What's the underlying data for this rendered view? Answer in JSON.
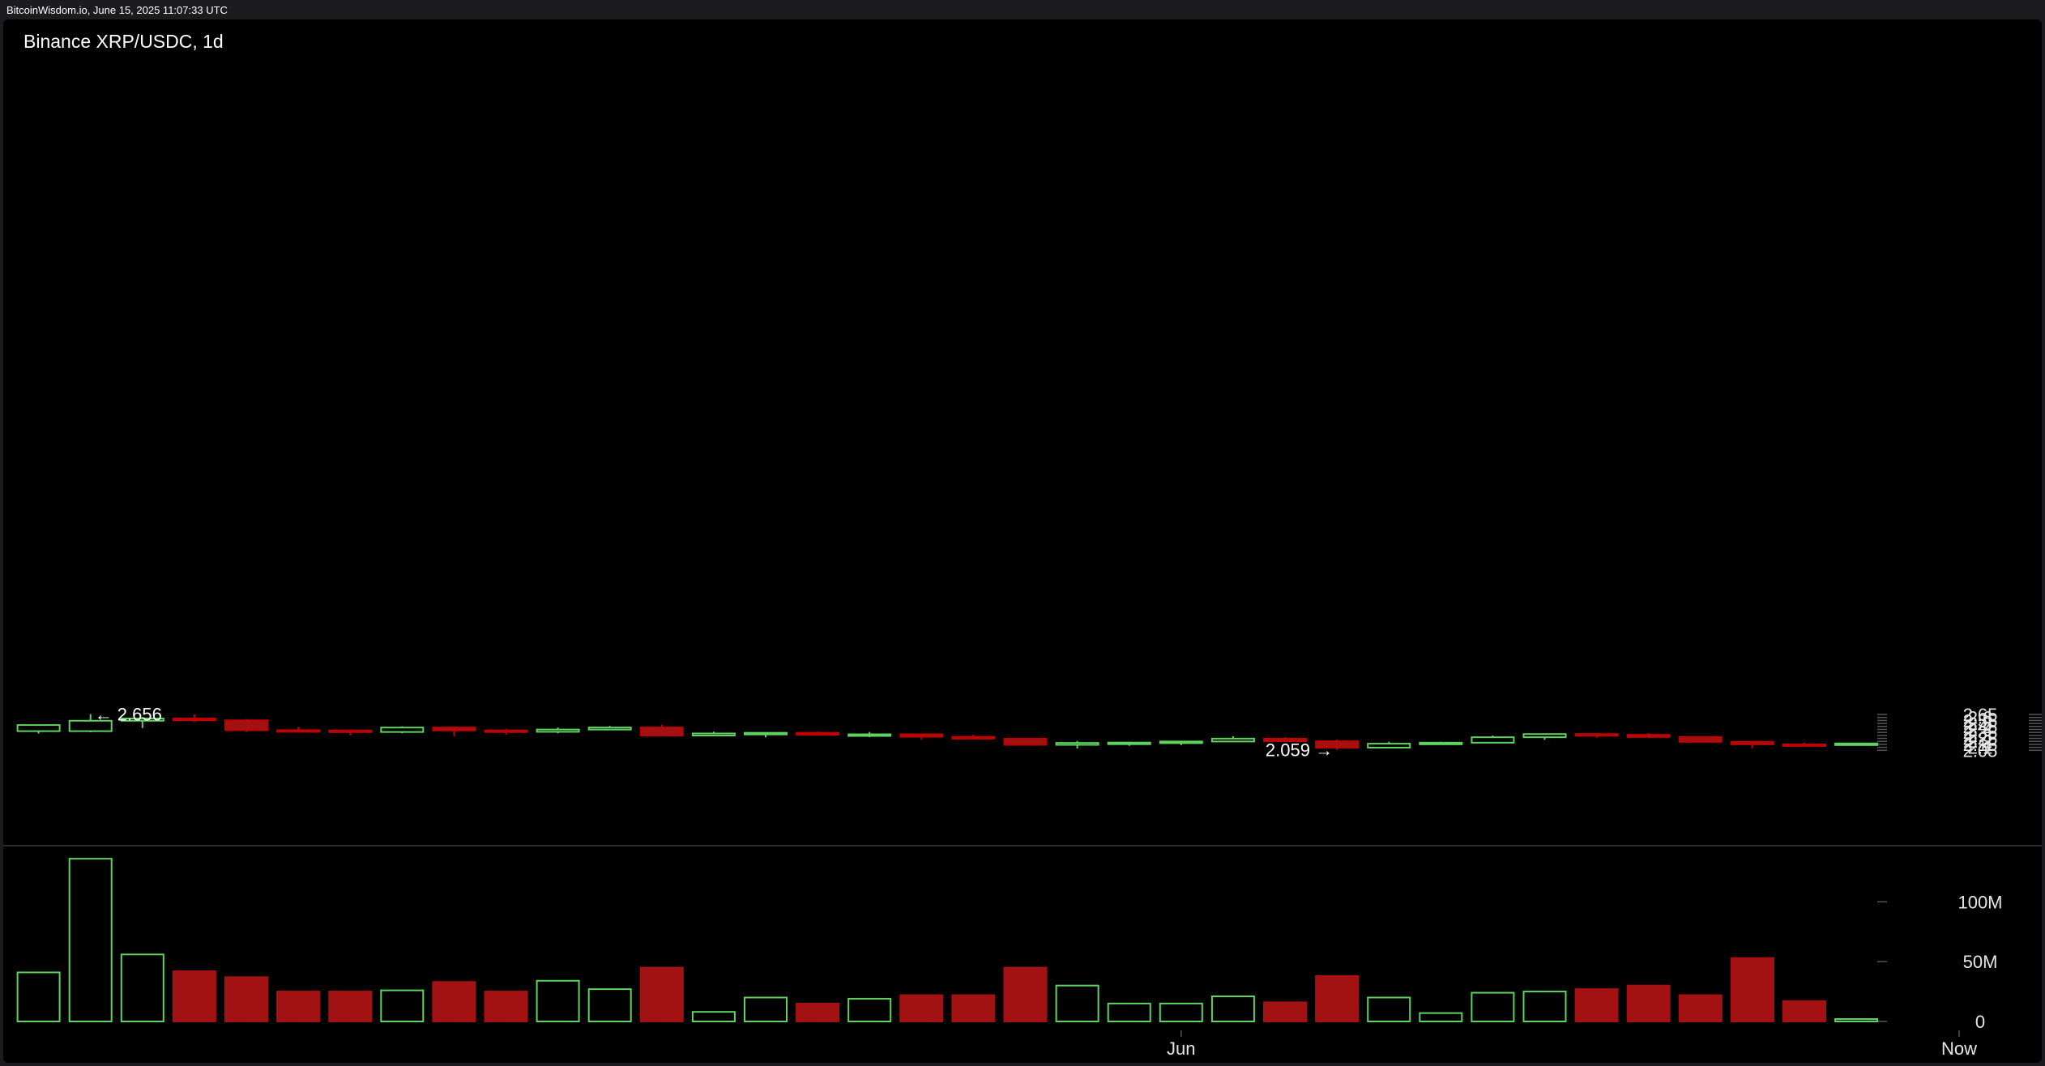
{
  "header": {
    "source_line": "BitcoinWisdom.io, June 15, 2025 11:07:33 UTC"
  },
  "colors": {
    "up": "#5fd35f",
    "down": "#c00000",
    "down_body": "#a31212",
    "text": "#ffffff",
    "axis_text": "#e6e6e6",
    "background": "#000000"
  },
  "chart_data": {
    "type": "candlestick",
    "title": "Binance XRP/USDC, 1d",
    "price_axis": {
      "ticks": [
        "2.65",
        "2.6",
        "2.55",
        "2.5",
        "2.45",
        "2.4",
        "2.35",
        "2.3",
        "2.25",
        "2.2",
        "2.15",
        "2.1",
        "2.05"
      ],
      "range": [
        2.02,
        2.68
      ],
      "position": "right"
    },
    "volume_axis": {
      "ticks": [
        "100M",
        "50M",
        "0"
      ],
      "range": [
        0,
        140
      ]
    },
    "x_axis": {
      "labels": [
        {
          "text": "Jun",
          "index": 22
        },
        {
          "text": "Now",
          "index": 37
        }
      ]
    },
    "annotations": [
      {
        "text": "← 2.656",
        "index": 1,
        "value": 2.656,
        "type": "high"
      },
      {
        "text": "2.059 →",
        "index": 25,
        "value": 2.059,
        "type": "low"
      }
    ],
    "candles": [
      {
        "o": 2.371,
        "h": 2.484,
        "l": 2.331,
        "c": 2.473,
        "v": 41
      },
      {
        "o": 2.371,
        "h": 2.656,
        "l": 2.353,
        "c": 2.545,
        "v": 136
      },
      {
        "o": 2.545,
        "h": 2.608,
        "l": 2.423,
        "c": 2.583,
        "v": 56
      },
      {
        "o": 2.583,
        "h": 2.652,
        "l": 2.522,
        "c": 2.552,
        "v": 42
      },
      {
        "o": 2.552,
        "h": 2.573,
        "l": 2.357,
        "c": 2.387,
        "v": 37
      },
      {
        "o": 2.387,
        "h": 2.442,
        "l": 2.349,
        "c": 2.383,
        "v": 25
      },
      {
        "o": 2.382,
        "h": 2.391,
        "l": 2.302,
        "c": 2.357,
        "v": 25
      },
      {
        "o": 2.357,
        "h": 2.452,
        "l": 2.335,
        "c": 2.431,
        "v": 26
      },
      {
        "o": 2.431,
        "h": 2.441,
        "l": 2.285,
        "c": 2.384,
        "v": 33
      },
      {
        "o": 2.383,
        "h": 2.41,
        "l": 2.313,
        "c": 2.36,
        "v": 25
      },
      {
        "o": 2.36,
        "h": 2.432,
        "l": 2.335,
        "c": 2.398,
        "v": 34
      },
      {
        "o": 2.398,
        "h": 2.458,
        "l": 2.393,
        "c": 2.432,
        "v": 27
      },
      {
        "o": 2.432,
        "h": 2.481,
        "l": 2.284,
        "c": 2.298,
        "v": 45
      },
      {
        "o": 2.298,
        "h": 2.362,
        "l": 2.288,
        "c": 2.332,
        "v": 8
      },
      {
        "o": 2.332,
        "h": 2.348,
        "l": 2.267,
        "c": 2.343,
        "v": 20
      },
      {
        "o": 2.343,
        "h": 2.362,
        "l": 2.299,
        "c": 2.312,
        "v": 15
      },
      {
        "o": 2.312,
        "h": 2.357,
        "l": 2.271,
        "c": 2.318,
        "v": 19
      },
      {
        "o": 2.318,
        "h": 2.325,
        "l": 2.229,
        "c": 2.277,
        "v": 22
      },
      {
        "o": 2.275,
        "h": 2.314,
        "l": 2.242,
        "c": 2.245,
        "v": 22
      },
      {
        "o": 2.245,
        "h": 2.253,
        "l": 2.133,
        "c": 2.142,
        "v": 45
      },
      {
        "o": 2.142,
        "h": 2.207,
        "l": 2.081,
        "c": 2.174,
        "v": 30
      },
      {
        "o": 2.174,
        "h": 2.192,
        "l": 2.125,
        "c": 2.18,
        "v": 15
      },
      {
        "o": 2.18,
        "h": 2.206,
        "l": 2.137,
        "c": 2.198,
        "v": 15
      },
      {
        "o": 2.198,
        "h": 2.286,
        "l": 2.187,
        "c": 2.246,
        "v": 21
      },
      {
        "o": 2.245,
        "h": 2.27,
        "l": 2.198,
        "c": 2.203,
        "v": 16
      },
      {
        "o": 2.202,
        "h": 2.228,
        "l": 2.059,
        "c": 2.095,
        "v": 38
      },
      {
        "o": 2.095,
        "h": 2.193,
        "l": 2.085,
        "c": 2.161,
        "v": 20
      },
      {
        "o": 2.161,
        "h": 2.193,
        "l": 2.15,
        "c": 2.178,
        "v": 7
      },
      {
        "o": 2.178,
        "h": 2.297,
        "l": 2.17,
        "c": 2.269,
        "v": 24
      },
      {
        "o": 2.269,
        "h": 2.33,
        "l": 2.226,
        "c": 2.322,
        "v": 25
      },
      {
        "o": 2.322,
        "h": 2.329,
        "l": 2.262,
        "c": 2.309,
        "v": 27
      },
      {
        "o": 2.309,
        "h": 2.339,
        "l": 2.256,
        "c": 2.273,
        "v": 30
      },
      {
        "o": 2.273,
        "h": 2.275,
        "l": 2.174,
        "c": 2.192,
        "v": 22
      },
      {
        "o": 2.192,
        "h": 2.193,
        "l": 2.086,
        "c": 2.151,
        "v": 53
      },
      {
        "o": 2.15,
        "h": 2.18,
        "l": 2.111,
        "c": 2.141,
        "v": 17
      },
      {
        "o": 2.141,
        "h": 2.167,
        "l": 2.139,
        "c": 2.165,
        "v": 2
      }
    ]
  }
}
